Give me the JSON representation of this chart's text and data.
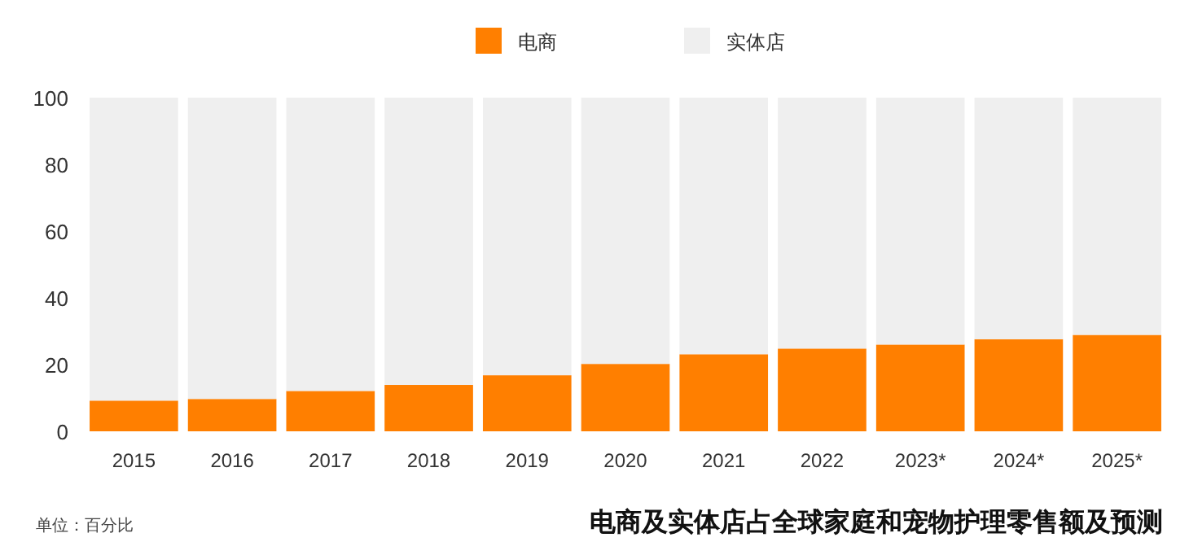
{
  "chart_data": {
    "type": "bar",
    "title": "电商及实体店占全球家庭和宠物护理零售额及预测",
    "annotations": [
      "单位：百分比"
    ],
    "categories": [
      "2015",
      "2016",
      "2017",
      "2018",
      "2019",
      "2020",
      "2021",
      "2022",
      "2023*",
      "2024*",
      "2025*"
    ],
    "stacked": true,
    "legend": "top",
    "grid": false,
    "ylim": [
      0,
      100
    ],
    "yticks": [
      0,
      20,
      40,
      60,
      80,
      100
    ],
    "series": [
      {
        "name": "电商",
        "color": "#ff7f00",
        "values": [
          9.2,
          9.7,
          12.1,
          13.9,
          16.8,
          20.2,
          23.1,
          24.8,
          26,
          27.6,
          28.9
        ]
      },
      {
        "name": "实体店",
        "color": "#efefef",
        "values": [
          90.8,
          90.3,
          87.9,
          86.1,
          83.2,
          79.8,
          76.9,
          75.2,
          74,
          72.4,
          71.1
        ]
      }
    ]
  }
}
